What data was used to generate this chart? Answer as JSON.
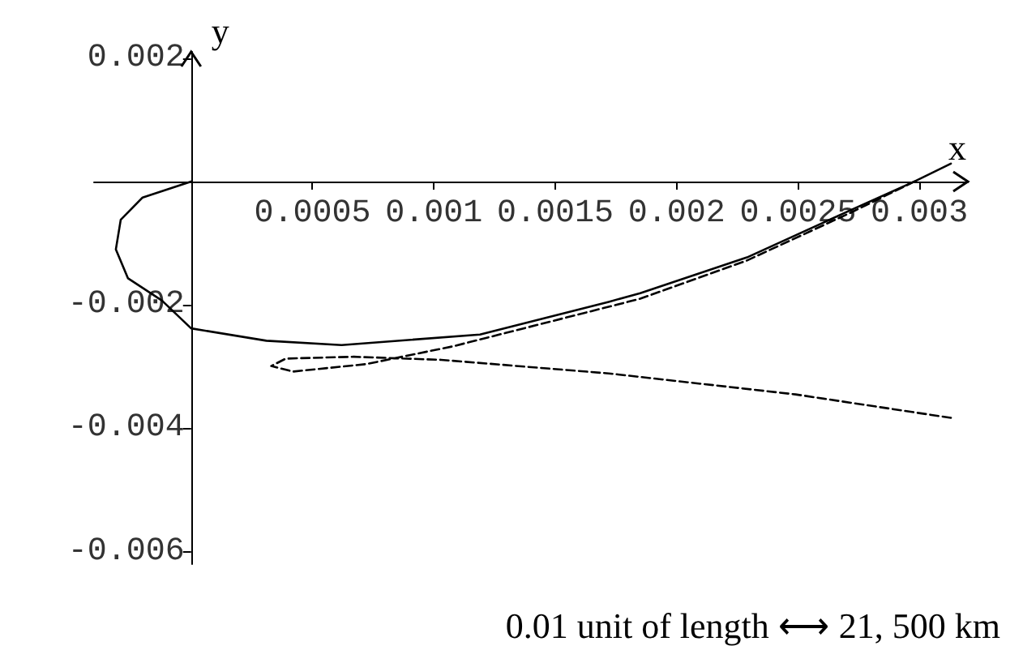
{
  "chart_data": {
    "type": "line",
    "xlabel": "x",
    "ylabel": "y",
    "xlim": [
      -0.0004,
      0.0032
    ],
    "ylim": [
      -0.0062,
      0.0021
    ],
    "xticks": [
      0.0005,
      0.001,
      0.0015,
      0.002,
      0.0025,
      0.003
    ],
    "yticks": [
      -0.006,
      -0.004,
      -0.002,
      0.002
    ],
    "grid": false,
    "marker": "none",
    "annotations": [
      "0.01 unit of length ⟷ 21, 500 km"
    ],
    "series": [
      {
        "color": "#000000",
        "line_style": "solid",
        "x": [
          0,
          -0.0002,
          -0.00029,
          -0.00031,
          -0.00026,
          -0.00012,
          0,
          0.00031,
          0.00062,
          0.00119,
          0.00172,
          0.00185,
          0.00229,
          0.00272,
          0.00298,
          0.00313
        ],
        "values": [
          0,
          -0.00026,
          -0.00062,
          -0.0011,
          -0.00157,
          -0.00193,
          -0.00238,
          -0.00258,
          -0.00265,
          -0.00248,
          -0.00195,
          -0.00181,
          -0.00123,
          -0.00046,
          0,
          0.00029
        ]
      },
      {
        "color": "#000000",
        "line_style": "dashed",
        "x": [
          0.00298,
          0.00272,
          0.00229,
          0.00185,
          0.00108,
          0.00072,
          0.00042,
          0.00033,
          0.00039,
          0.00067,
          0.00103,
          0.00172,
          0.00249,
          0.00313
        ],
        "values": [
          0,
          -0.0005,
          -0.00128,
          -0.0019,
          -0.00267,
          -0.00296,
          -0.00308,
          -0.00299,
          -0.00287,
          -0.00284,
          -0.00289,
          -0.00311,
          -0.00345,
          -0.00383
        ]
      }
    ]
  }
}
